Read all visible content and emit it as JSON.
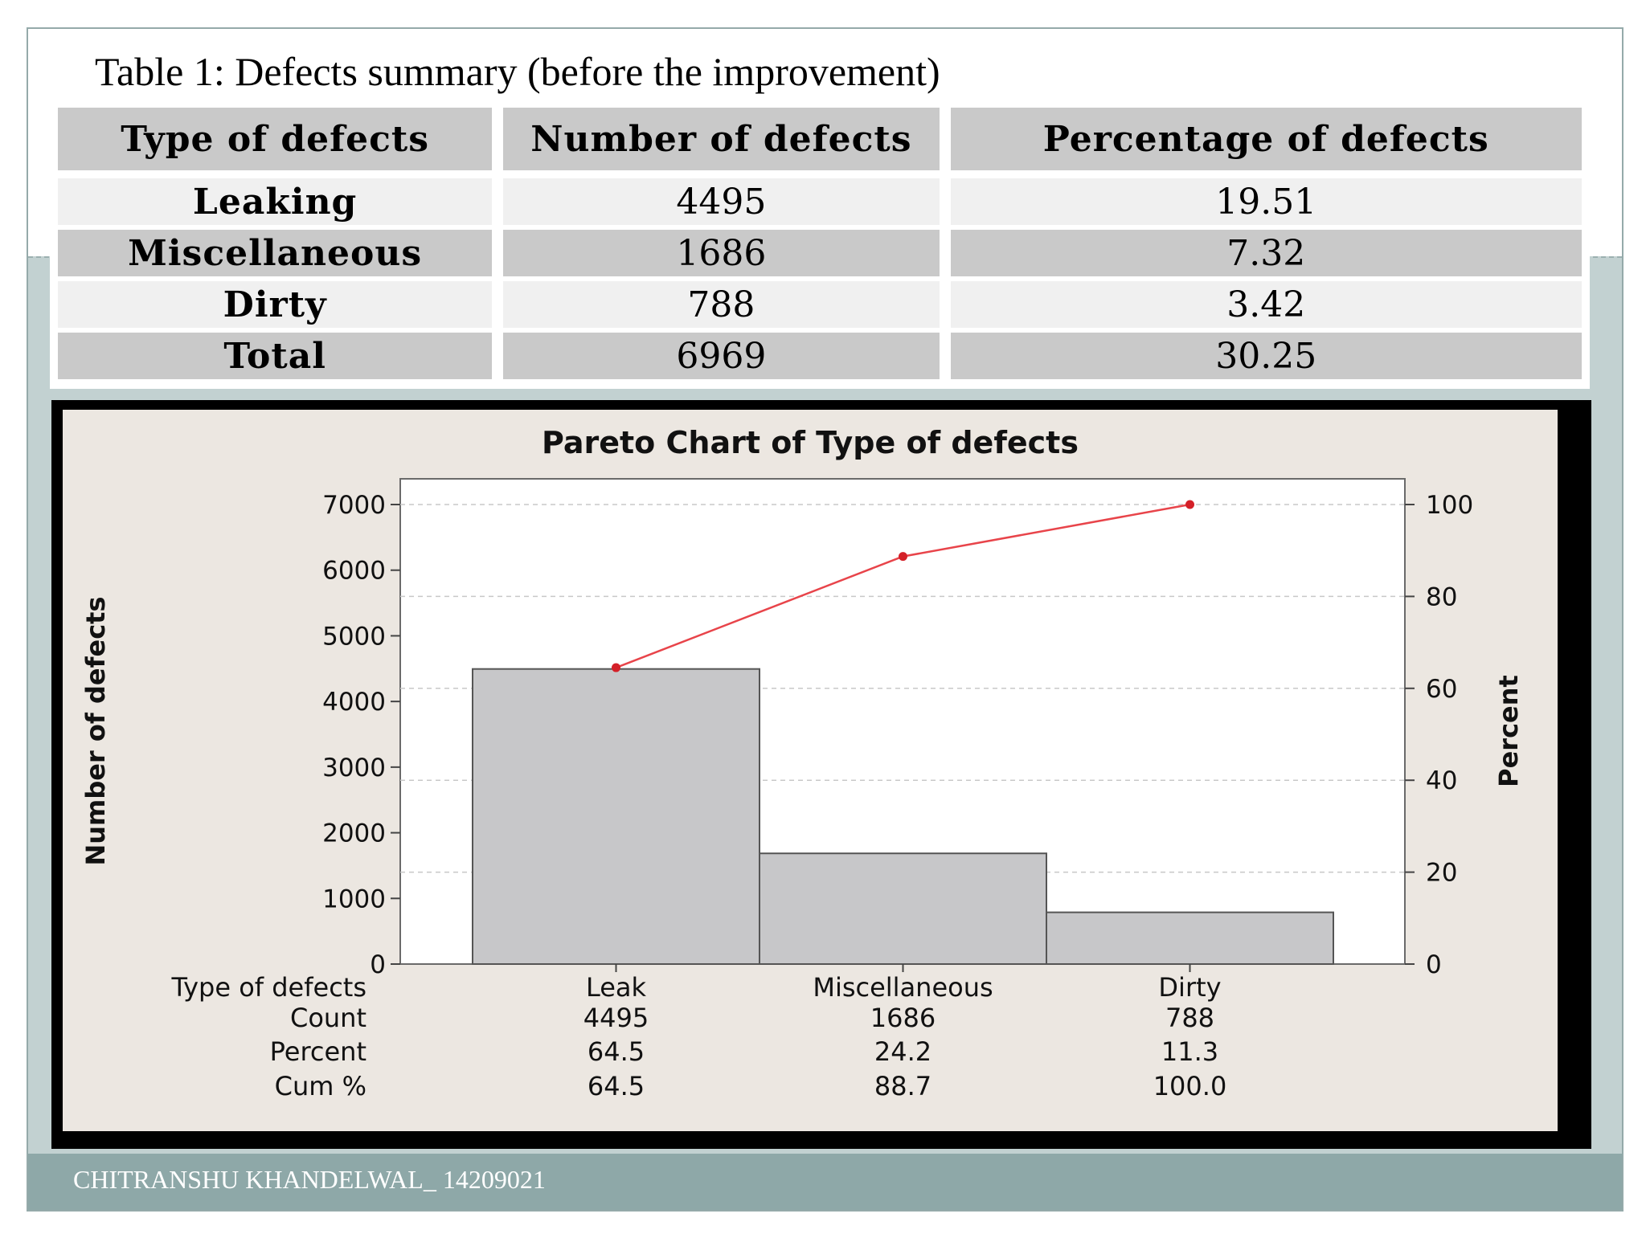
{
  "table": {
    "title": "Table 1: Defects summary (before the improvement)",
    "headers": [
      "Type of defects",
      "Number of defects",
      "Percentage of defects"
    ],
    "rows": [
      [
        "Leaking",
        "4495",
        "19.51"
      ],
      [
        "Miscellaneous",
        "1686",
        "7.32"
      ],
      [
        "Dirty",
        "788",
        "3.42"
      ],
      [
        "Total",
        "6969",
        "30.25"
      ]
    ]
  },
  "chart_data": {
    "type": "bar",
    "title": "Pareto Chart of Type of defects",
    "categories": [
      "Leak",
      "Miscellaneous",
      "Dirty"
    ],
    "values": [
      4495,
      1686,
      788
    ],
    "cumulative_percent": [
      64.5,
      88.7,
      100.0
    ],
    "ylabel": "Number of defects",
    "y2label": "Percent",
    "ylim": [
      0,
      7000
    ],
    "y2lim": [
      0,
      100
    ],
    "yticks": [
      0,
      1000,
      2000,
      3000,
      4000,
      5000,
      6000,
      7000
    ],
    "y2ticks": [
      0,
      20,
      40,
      60,
      80,
      100
    ],
    "grid": true,
    "bar_color": "#c7c7c9",
    "line_color": "#e8444a",
    "summary_table": {
      "row_labels": [
        "Type of defects",
        "Count",
        "Percent",
        "Cum %"
      ],
      "columns": [
        [
          "Leak",
          "4495",
          "64.5",
          "64.5"
        ],
        [
          "Miscellaneous",
          "1686",
          "24.2",
          "88.7"
        ],
        [
          "Dirty",
          "788",
          "11.3",
          "100.0"
        ]
      ]
    }
  },
  "footer": {
    "text": "CHITRANSHU KHANDELWAL_ 14209021"
  }
}
